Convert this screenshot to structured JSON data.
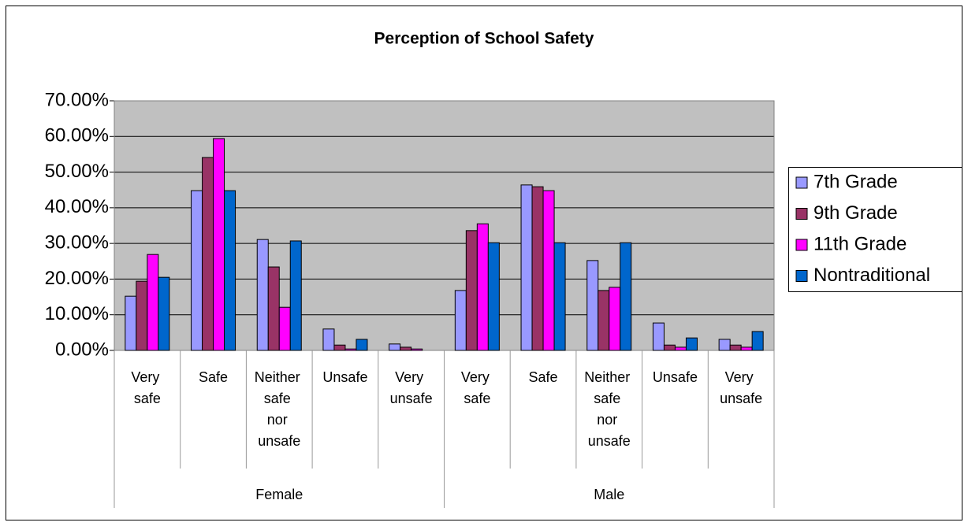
{
  "chart_data": {
    "type": "bar",
    "title": "Perception of School Safety",
    "categories": [
      "Very safe",
      "Safe",
      "Neither safe nor unsafe",
      "Unsafe",
      "Very unsafe",
      "Very safe",
      "Safe",
      "Neither safe nor unsafe",
      "Unsafe",
      "Very unsafe"
    ],
    "category_groups": [
      "Female",
      "Male"
    ],
    "series": [
      {
        "name": "7th Grade",
        "color": "#9999ff",
        "values": [
          15.2,
          44.8,
          31.1,
          6.0,
          1.8,
          16.8,
          46.4,
          25.2,
          7.7,
          3.1
        ]
      },
      {
        "name": "9th Grade",
        "color": "#993366",
        "values": [
          19.4,
          54.1,
          23.4,
          1.5,
          0.9,
          33.6,
          45.9,
          16.8,
          1.5,
          1.5
        ]
      },
      {
        "name": "11th Grade",
        "color": "#ff00ff",
        "values": [
          26.9,
          59.4,
          12.1,
          0.4,
          0.4,
          35.5,
          44.8,
          17.7,
          0.9,
          0.9
        ]
      },
      {
        "name": "Nontraditional",
        "color": "#0066cc",
        "values": [
          20.5,
          44.8,
          30.7,
          3.1,
          0,
          30.2,
          30.2,
          30.2,
          3.5,
          5.3
        ]
      }
    ],
    "ylim": [
      0,
      70
    ],
    "yticks": [
      {
        "value": 0,
        "label": "0.00%"
      },
      {
        "value": 10,
        "label": "10.00%"
      },
      {
        "value": 20,
        "label": "20.00%"
      },
      {
        "value": 30,
        "label": "30.00%"
      },
      {
        "value": 40,
        "label": "40.00%"
      },
      {
        "value": 50,
        "label": "50.00%"
      },
      {
        "value": 60,
        "label": "60.00%"
      },
      {
        "value": 70,
        "label": "70.00%"
      }
    ],
    "grid": true,
    "legend": "right",
    "plot_background": "#c0c0c0"
  }
}
